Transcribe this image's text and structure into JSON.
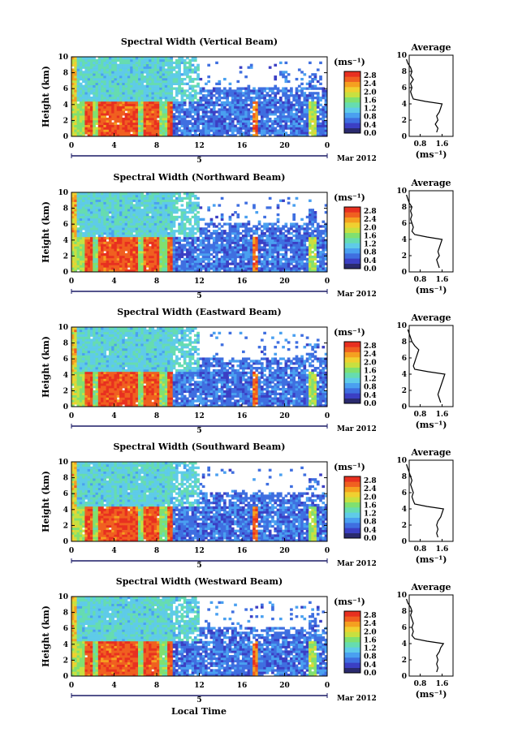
{
  "x_axis_label": "Local Time",
  "date_label": "Mar 2012",
  "day_label": "5",
  "avg_title": "Average",
  "y_axis_label": "Height (km)",
  "colorbar_unit": "(ms⁻¹)",
  "avg_xlabel": "(ms⁻¹)",
  "x_ticks": [
    "0",
    "4",
    "8",
    "12",
    "16",
    "20",
    "0"
  ],
  "y_ticks": [
    "0",
    "2",
    "4",
    "6",
    "8",
    "10"
  ],
  "colorbar_ticks": [
    "0.0",
    "0.4",
    "0.8",
    "1.2",
    "1.6",
    "2.0",
    "2.4",
    "2.8"
  ],
  "colorbar_colors": [
    "#2a2a6e",
    "#3b3fc4",
    "#3f6fe0",
    "#4aa0f0",
    "#5fcbe8",
    "#66dcb0",
    "#80e070",
    "#c8e040",
    "#f0d030",
    "#f5a020",
    "#f06020",
    "#e83020"
  ],
  "chart_data": [
    {
      "type": "heatmap",
      "title": "Spectral Width (Vertical Beam)",
      "xlabel": "Local Time",
      "ylabel": "Height (km)",
      "xlim": [
        0,
        24
      ],
      "ylim": [
        0,
        10
      ],
      "zlim": [
        0.0,
        2.8
      ],
      "avg_ticks": [
        "0.8",
        "1.6"
      ],
      "avg_profile": [
        [
          1.4,
          0.5
        ],
        [
          1.45,
          1.0
        ],
        [
          1.35,
          1.5
        ],
        [
          1.45,
          2.0
        ],
        [
          1.4,
          2.5
        ],
        [
          1.5,
          3.0
        ],
        [
          1.55,
          3.5
        ],
        [
          1.6,
          4.0
        ],
        [
          1.0,
          4.3
        ],
        [
          0.55,
          4.6
        ],
        [
          0.5,
          5.0
        ],
        [
          0.45,
          5.5
        ],
        [
          0.5,
          6.0
        ],
        [
          0.45,
          6.5
        ],
        [
          0.55,
          7.0
        ],
        [
          0.45,
          7.5
        ],
        [
          0.5,
          8.0
        ],
        [
          0.45,
          8.5
        ],
        [
          0.35,
          9.0
        ],
        [
          0.3,
          9.5
        ]
      ]
    },
    {
      "type": "heatmap",
      "title": "Spectral Width (Northward Beam)",
      "xlabel": "Local Time",
      "ylabel": "Height (km)",
      "xlim": [
        0,
        24
      ],
      "ylim": [
        0,
        10
      ],
      "zlim": [
        0.0,
        2.8
      ],
      "avg_ticks": [
        "0.8",
        "1.6"
      ],
      "avg_profile": [
        [
          1.5,
          0.5
        ],
        [
          1.45,
          1.0
        ],
        [
          1.4,
          1.5
        ],
        [
          1.5,
          2.0
        ],
        [
          1.45,
          2.5
        ],
        [
          1.5,
          3.0
        ],
        [
          1.55,
          3.5
        ],
        [
          1.6,
          4.0
        ],
        [
          1.05,
          4.3
        ],
        [
          0.6,
          4.6
        ],
        [
          0.5,
          5.0
        ],
        [
          0.55,
          5.5
        ],
        [
          0.5,
          6.0
        ],
        [
          0.45,
          6.5
        ],
        [
          0.5,
          7.0
        ],
        [
          0.45,
          7.5
        ],
        [
          0.5,
          8.0
        ],
        [
          0.4,
          8.5
        ],
        [
          0.35,
          9.0
        ],
        [
          0.3,
          9.5
        ]
      ]
    },
    {
      "type": "heatmap",
      "title": "Spectral Width (Eastward Beam)",
      "xlabel": "Local Time",
      "ylabel": "Height (km)",
      "xlim": [
        0,
        24
      ],
      "ylim": [
        0,
        10
      ],
      "zlim": [
        0.0,
        2.8
      ],
      "avg_ticks": [
        "0.8",
        "1.6"
      ],
      "avg_profile": [
        [
          1.55,
          0.5
        ],
        [
          1.5,
          1.0
        ],
        [
          1.45,
          1.5
        ],
        [
          1.5,
          2.0
        ],
        [
          1.55,
          2.5
        ],
        [
          1.6,
          3.0
        ],
        [
          1.65,
          3.5
        ],
        [
          1.7,
          4.0
        ],
        [
          1.1,
          4.3
        ],
        [
          0.6,
          4.6
        ],
        [
          0.55,
          5.0
        ],
        [
          0.6,
          5.5
        ],
        [
          0.65,
          6.0
        ],
        [
          0.7,
          6.5
        ],
        [
          0.75,
          7.0
        ],
        [
          0.6,
          7.5
        ],
        [
          0.5,
          8.0
        ],
        [
          0.45,
          8.5
        ],
        [
          0.4,
          9.0
        ],
        [
          0.35,
          9.5
        ]
      ]
    },
    {
      "type": "heatmap",
      "title": "Spectral Width (Southward Beam)",
      "xlabel": "Local Time",
      "ylabel": "Height (km)",
      "xlim": [
        0,
        24
      ],
      "ylim": [
        0,
        10
      ],
      "zlim": [
        0.0,
        2.8
      ],
      "avg_ticks": [
        "0.8",
        "1.6"
      ],
      "avg_profile": [
        [
          1.45,
          0.5
        ],
        [
          1.4,
          1.0
        ],
        [
          1.45,
          1.5
        ],
        [
          1.4,
          2.0
        ],
        [
          1.45,
          2.5
        ],
        [
          1.55,
          3.0
        ],
        [
          1.6,
          3.5
        ],
        [
          1.65,
          4.0
        ],
        [
          1.05,
          4.3
        ],
        [
          0.6,
          4.6
        ],
        [
          0.55,
          5.0
        ],
        [
          0.5,
          5.5
        ],
        [
          0.55,
          6.0
        ],
        [
          0.5,
          6.5
        ],
        [
          0.45,
          7.0
        ],
        [
          0.5,
          7.5
        ],
        [
          0.45,
          8.0
        ],
        [
          0.4,
          8.5
        ],
        [
          0.35,
          9.0
        ],
        [
          0.3,
          9.5
        ]
      ]
    },
    {
      "type": "heatmap",
      "title": "Spectral Width (Westward Beam)",
      "xlabel": "Local Time",
      "ylabel": "Height (km)",
      "xlim": [
        0,
        24
      ],
      "ylim": [
        0,
        10
      ],
      "zlim": [
        0.0,
        2.8
      ],
      "avg_ticks": [
        "0.8",
        "1.6"
      ],
      "avg_profile": [
        [
          1.4,
          0.5
        ],
        [
          1.45,
          1.0
        ],
        [
          1.4,
          1.5
        ],
        [
          1.45,
          2.0
        ],
        [
          1.4,
          2.5
        ],
        [
          1.5,
          3.0
        ],
        [
          1.55,
          3.5
        ],
        [
          1.65,
          4.0
        ],
        [
          1.05,
          4.3
        ],
        [
          0.6,
          4.6
        ],
        [
          0.5,
          5.0
        ],
        [
          0.55,
          5.5
        ],
        [
          0.5,
          6.0
        ],
        [
          0.55,
          6.5
        ],
        [
          0.5,
          7.0
        ],
        [
          0.45,
          7.5
        ],
        [
          0.5,
          8.0
        ],
        [
          0.45,
          8.5
        ],
        [
          0.35,
          9.0
        ],
        [
          0.3,
          9.5
        ]
      ]
    }
  ]
}
